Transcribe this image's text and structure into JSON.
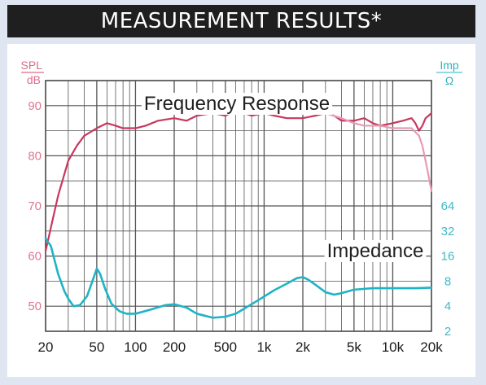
{
  "header": {
    "title": "MEASUREMENT RESULTS*"
  },
  "chart_data": {
    "type": "line",
    "x_scale": "log",
    "xlim": [
      20,
      20000
    ],
    "x_ticks": [
      {
        "value": 20,
        "label": "20"
      },
      {
        "value": 50,
        "label": "50"
      },
      {
        "value": 100,
        "label": "100"
      },
      {
        "value": 200,
        "label": "200"
      },
      {
        "value": 500,
        "label": "500"
      },
      {
        "value": 1000,
        "label": "1k"
      },
      {
        "value": 2000,
        "label": "2k"
      },
      {
        "value": 5000,
        "label": "5k"
      },
      {
        "value": 10000,
        "label": "10k"
      },
      {
        "value": 20000,
        "label": "20k"
      }
    ],
    "left_axis": {
      "unit_top": "SPL",
      "unit_bottom": "dB",
      "ylim": [
        45,
        95
      ],
      "ticks": [
        {
          "value": 90,
          "label": "90"
        },
        {
          "value": 80,
          "label": "80"
        },
        {
          "value": 70,
          "label": "70"
        },
        {
          "value": 60,
          "label": "60"
        },
        {
          "value": 50,
          "label": "50"
        }
      ],
      "color": "#d24a6e"
    },
    "right_axis": {
      "unit_top": "Imp",
      "unit_bottom": "Ω",
      "ticks": [
        {
          "label": "64",
          "level_db": 70
        },
        {
          "label": "32",
          "level_db": 65
        },
        {
          "label": "16",
          "level_db": 60
        },
        {
          "label": "8",
          "level_db": 55
        },
        {
          "label": "4",
          "level_db": 50
        },
        {
          "label": "2",
          "level_db": 45
        }
      ],
      "color": "#2bb3c0"
    },
    "annotations": [
      {
        "text": "Frequency Response"
      },
      {
        "text": "Impedance"
      }
    ],
    "series": [
      {
        "key": "frequency_response",
        "axis": "left",
        "color": "#c8375f",
        "points": [
          [
            20,
            61
          ],
          [
            25,
            72
          ],
          [
            30,
            79
          ],
          [
            35,
            82
          ],
          [
            40,
            84
          ],
          [
            50,
            85.5
          ],
          [
            60,
            86.5
          ],
          [
            70,
            86
          ],
          [
            80,
            85.5
          ],
          [
            100,
            85.5
          ],
          [
            120,
            86
          ],
          [
            150,
            87
          ],
          [
            200,
            87.5
          ],
          [
            250,
            87
          ],
          [
            300,
            88
          ],
          [
            400,
            88.5
          ],
          [
            500,
            88
          ],
          [
            600,
            89
          ],
          [
            700,
            88.5
          ],
          [
            800,
            88
          ],
          [
            1000,
            88.5
          ],
          [
            1200,
            88
          ],
          [
            1500,
            87.5
          ],
          [
            2000,
            87.5
          ],
          [
            2500,
            88
          ],
          [
            3000,
            88.5
          ],
          [
            3500,
            88
          ],
          [
            4000,
            87
          ],
          [
            5000,
            87
          ],
          [
            6000,
            87.5
          ],
          [
            7000,
            86.5
          ],
          [
            8000,
            86
          ],
          [
            10000,
            86.5
          ],
          [
            12000,
            87
          ],
          [
            14000,
            87.5
          ],
          [
            15000,
            86.5
          ],
          [
            16000,
            85
          ],
          [
            17000,
            86
          ],
          [
            18000,
            87.5
          ],
          [
            19000,
            88
          ],
          [
            20000,
            88.5
          ]
        ]
      },
      {
        "key": "frequency_response_2",
        "axis": "left",
        "color": "#e79ab4",
        "points": [
          [
            3000,
            88.5
          ],
          [
            4000,
            87.5
          ],
          [
            5000,
            86.5
          ],
          [
            6000,
            86
          ],
          [
            8000,
            86
          ],
          [
            10000,
            85.5
          ],
          [
            12000,
            85.5
          ],
          [
            14000,
            85.5
          ],
          [
            16000,
            84
          ],
          [
            17000,
            82
          ],
          [
            18000,
            79
          ],
          [
            19000,
            76
          ],
          [
            20000,
            73
          ]
        ]
      },
      {
        "key": "impedance",
        "axis": "right",
        "color": "#1fb3c6",
        "points": [
          [
            20,
            63.5
          ],
          [
            22,
            62
          ],
          [
            25,
            56.5
          ],
          [
            28,
            53
          ],
          [
            30,
            51.5
          ],
          [
            33,
            50
          ],
          [
            37,
            50.2
          ],
          [
            42,
            52
          ],
          [
            47,
            55.5
          ],
          [
            50,
            57.5
          ],
          [
            53,
            56.5
          ],
          [
            58,
            53.5
          ],
          [
            65,
            50.5
          ],
          [
            75,
            49
          ],
          [
            85,
            48.5
          ],
          [
            100,
            48.5
          ],
          [
            130,
            49.3
          ],
          [
            170,
            50.2
          ],
          [
            200,
            50.4
          ],
          [
            250,
            49.7
          ],
          [
            300,
            48.5
          ],
          [
            400,
            47.7
          ],
          [
            500,
            47.9
          ],
          [
            600,
            48.5
          ],
          [
            700,
            49.5
          ],
          [
            900,
            51.2
          ],
          [
            1200,
            53.2
          ],
          [
            1500,
            54.5
          ],
          [
            1800,
            55.6
          ],
          [
            2000,
            55.8
          ],
          [
            2200,
            55.3
          ],
          [
            2500,
            54.3
          ],
          [
            3000,
            52.8
          ],
          [
            3500,
            52.3
          ],
          [
            4000,
            52.6
          ],
          [
            5000,
            53.3
          ],
          [
            7000,
            53.6
          ],
          [
            10000,
            53.6
          ],
          [
            15000,
            53.6
          ],
          [
            20000,
            53.7
          ]
        ]
      }
    ]
  }
}
